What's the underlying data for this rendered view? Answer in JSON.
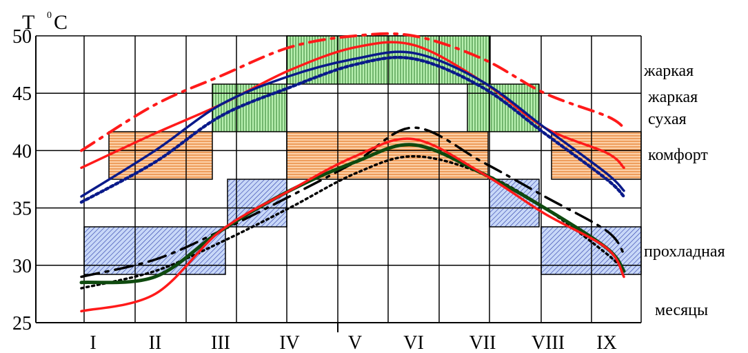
{
  "chart_data": {
    "type": "line",
    "y_title_main": "T",
    "y_title_sup": "0",
    "y_title_unit": "C",
    "xlabel": "месяцы",
    "x_categories": [
      "I",
      "II",
      "III",
      "IV",
      "V",
      "VI",
      "VII",
      "VIII",
      "IX"
    ],
    "y_ticks": [
      "25",
      "30",
      "35",
      "40",
      "45",
      "50"
    ],
    "ylim": [
      25,
      50
    ],
    "grid": true,
    "zones": [
      {
        "label": "жаркая",
        "lines": [
          "жаркая"
        ]
      },
      {
        "label": "жаркая сухая",
        "lines": [
          "жаркая",
          "сухая"
        ]
      },
      {
        "label": "комфорт",
        "lines": [
          "комфорт"
        ]
      },
      {
        "label": "прохладная",
        "lines": [
          "прохладная"
        ]
      }
    ],
    "colors": {
      "hot_fill": "#b8f0b0",
      "hot_hatch": "#2a7a2a",
      "comfort_fill": "#fcd0a8",
      "comfort_hatch": "#e06a10",
      "cool_fill": "#c8d8f8",
      "cool_hatch": "#2a3aa8",
      "red": "#ff1a1a",
      "navy": "#0a1a8a",
      "green": "#0f4a0f",
      "black": "#000000"
    },
    "series": [
      {
        "style": "red-dashdot",
        "points": [
          [
            0,
            40
          ],
          [
            1,
            44
          ],
          [
            2,
            46.5
          ],
          [
            3,
            49
          ],
          [
            4,
            50
          ],
          [
            5,
            50
          ],
          [
            6,
            48
          ],
          [
            7,
            45
          ],
          [
            8,
            43
          ],
          [
            8.5,
            42
          ]
        ]
      },
      {
        "style": "red-solid-top",
        "points": [
          [
            0,
            38.5
          ],
          [
            1,
            41.5
          ],
          [
            2,
            44
          ],
          [
            3,
            47
          ],
          [
            4,
            49
          ],
          [
            5,
            49.2
          ],
          [
            6,
            46
          ],
          [
            7,
            42
          ],
          [
            8,
            39.8
          ],
          [
            8.5,
            38.5
          ]
        ]
      },
      {
        "style": "navy-solid",
        "points": [
          [
            0,
            36
          ],
          [
            1,
            40
          ],
          [
            2,
            44
          ],
          [
            3,
            46.5
          ],
          [
            4,
            48
          ],
          [
            5,
            48.5
          ],
          [
            6,
            46
          ],
          [
            7,
            42
          ],
          [
            8,
            38
          ],
          [
            8.5,
            36.5
          ]
        ]
      },
      {
        "style": "navy-dotted",
        "points": [
          [
            0,
            35.5
          ],
          [
            1,
            39
          ],
          [
            2,
            43
          ],
          [
            3,
            45.5
          ],
          [
            4,
            47.5
          ],
          [
            5,
            48
          ],
          [
            6,
            45.5
          ],
          [
            7,
            41.5
          ],
          [
            8,
            37.5
          ],
          [
            8.5,
            36
          ]
        ]
      },
      {
        "style": "black-dashed",
        "points": [
          [
            0,
            29
          ],
          [
            1,
            30.5
          ],
          [
            2,
            33
          ],
          [
            3,
            36
          ],
          [
            4,
            39
          ],
          [
            5,
            42
          ],
          [
            6,
            39
          ],
          [
            7,
            36
          ],
          [
            8,
            33
          ],
          [
            8.5,
            31
          ]
        ]
      },
      {
        "style": "black-dotted",
        "points": [
          [
            0,
            28
          ],
          [
            1,
            29.5
          ],
          [
            2,
            32
          ],
          [
            3,
            35
          ],
          [
            4,
            38
          ],
          [
            5,
            39.5
          ],
          [
            6,
            38
          ],
          [
            7,
            35
          ],
          [
            8,
            31
          ],
          [
            8.5,
            29.5
          ]
        ]
      },
      {
        "style": "green-thick",
        "points": [
          [
            0,
            28.5
          ],
          [
            1,
            29
          ],
          [
            2,
            33
          ],
          [
            3,
            36.5
          ],
          [
            4,
            39
          ],
          [
            5,
            40.5
          ],
          [
            6,
            38
          ],
          [
            7,
            35
          ],
          [
            8,
            31.5
          ],
          [
            8.5,
            29.5
          ]
        ]
      },
      {
        "style": "red-solid-bottom",
        "points": [
          [
            0,
            26
          ],
          [
            1,
            27.5
          ],
          [
            2,
            33
          ],
          [
            3,
            36.5
          ],
          [
            4,
            39.5
          ],
          [
            5,
            41
          ],
          [
            6,
            38
          ],
          [
            7,
            34.5
          ],
          [
            8,
            31.5
          ],
          [
            8.5,
            29
          ]
        ]
      }
    ]
  }
}
